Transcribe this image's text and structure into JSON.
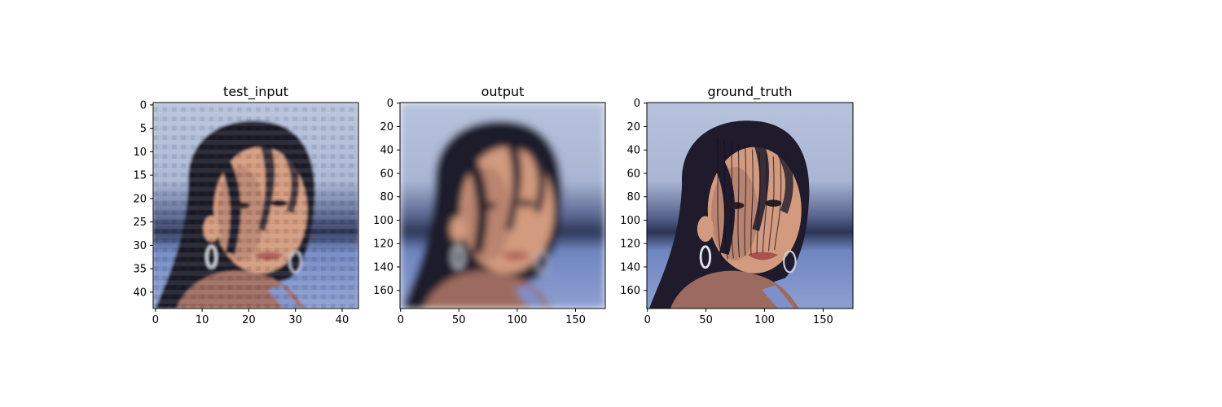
{
  "chart_data": [
    {
      "type": "image",
      "title": "test_input",
      "image_size": [
        44,
        44
      ],
      "xlim": [
        -0.5,
        43.5
      ],
      "ylim": [
        43.5,
        -0.5
      ],
      "xticks": [
        0,
        10,
        20,
        30,
        40
      ],
      "yticks": [
        0,
        5,
        10,
        15,
        20,
        25,
        30,
        35,
        40
      ],
      "render": "pixelated"
    },
    {
      "type": "image",
      "title": "output",
      "image_size": [
        176,
        176
      ],
      "xlim": [
        -0.5,
        175.5
      ],
      "ylim": [
        175.5,
        -0.5
      ],
      "xticks": [
        0,
        50,
        100,
        150
      ],
      "yticks": [
        0,
        20,
        40,
        60,
        80,
        100,
        120,
        140,
        160
      ],
      "render": "blurred"
    },
    {
      "type": "image",
      "title": "ground_truth",
      "image_size": [
        176,
        176
      ],
      "xlim": [
        -0.5,
        175.5
      ],
      "ylim": [
        175.5,
        -0.5
      ],
      "xticks": [
        0,
        50,
        100,
        150
      ],
      "yticks": [
        0,
        20,
        40,
        60,
        80,
        100,
        120,
        140,
        160
      ],
      "render": "sharp"
    }
  ],
  "colors": {
    "sky_top": "#b7c3dc",
    "sky_mid": "#a9b5d3",
    "band_dark": "#2c3555",
    "water": "#6f86c0",
    "hair": "#1f1a2c",
    "skin": "#d29a7e",
    "skin_shadow": "#9c6a5e",
    "shirt": "#7f8fc8"
  }
}
